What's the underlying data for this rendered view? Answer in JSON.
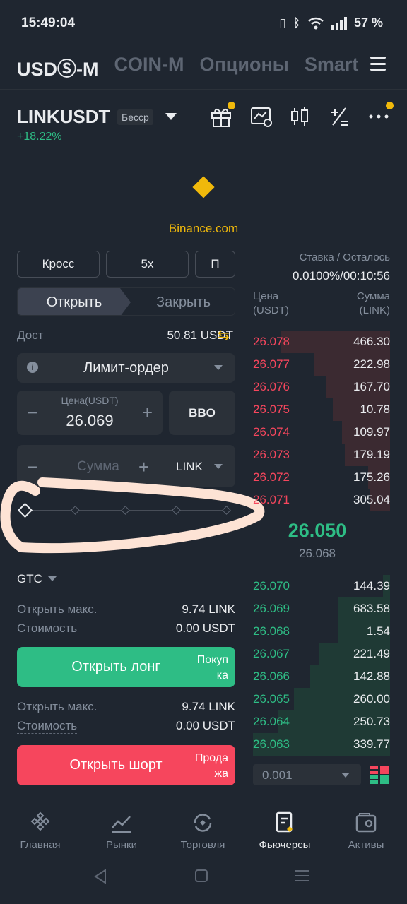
{
  "status_bar": {
    "time": "15:49:04",
    "battery": "57 %"
  },
  "top_tabs": [
    {
      "label": "USDⓈ-M",
      "active": true
    },
    {
      "label": "COIN-M",
      "active": false
    },
    {
      "label": "Опционы",
      "active": false
    },
    {
      "label": "Smart",
      "active": false
    }
  ],
  "symbol": {
    "name": "LINKUSDT",
    "badge": "Бесср",
    "change": "+18.22%"
  },
  "watermark": "Binance.com",
  "margin_mode": "Кросс",
  "leverage": "5x",
  "position_mode": "П",
  "funding": {
    "label": "Ставка / Осталось",
    "value": "0.0100%/00:10:56"
  },
  "side_tabs": {
    "open": "Открыть",
    "close": "Закрыть"
  },
  "available": {
    "label": "Дост",
    "value": "50.81 USDT"
  },
  "order_type": "Лимит-ордер",
  "price_field": {
    "label": "Цена(USDT)",
    "value": "26.069"
  },
  "bbo": "BBO",
  "amount_field": {
    "placeholder": "Сумма",
    "unit": "LINK"
  },
  "tif": "GTC",
  "long": {
    "max_label": "Открыть макс.",
    "max_value": "9.74 LINK",
    "cost_label": "Стоимость",
    "cost_value": "0.00 USDT",
    "button": "Открыть лонг",
    "sub": "Покуп ка"
  },
  "short": {
    "max_label": "Открыть макс.",
    "max_value": "9.74 LINK",
    "cost_label": "Стоимость",
    "cost_value": "0.00 USDT",
    "button": "Открыть шорт",
    "sub": "Прода жа"
  },
  "orderbook": {
    "price_header": "Цена (USDT)",
    "amount_header": "Сумма (LINK)",
    "asks": [
      {
        "price": "26.078",
        "amount": "466.30",
        "depth": 0.8
      },
      {
        "price": "26.077",
        "amount": "222.98",
        "depth": 0.55
      },
      {
        "price": "26.076",
        "amount": "167.70",
        "depth": 0.47
      },
      {
        "price": "26.075",
        "amount": "10.78",
        "depth": 0.42
      },
      {
        "price": "26.074",
        "amount": "109.97",
        "depth": 0.35
      },
      {
        "price": "26.073",
        "amount": "179.19",
        "depth": 0.33
      },
      {
        "price": "26.072",
        "amount": "175.26",
        "depth": 0.16
      },
      {
        "price": "26.071",
        "amount": "305.04",
        "depth": 0.15
      }
    ],
    "last_price": "26.050",
    "mark_price": "26.068",
    "bids": [
      {
        "price": "26.070",
        "amount": "144.39",
        "depth": 0.05
      },
      {
        "price": "26.069",
        "amount": "683.58",
        "depth": 0.38
      },
      {
        "price": "26.068",
        "amount": "1.54",
        "depth": 0.38
      },
      {
        "price": "26.067",
        "amount": "221.49",
        "depth": 0.52
      },
      {
        "price": "26.066",
        "amount": "142.88",
        "depth": 0.58
      },
      {
        "price": "26.065",
        "amount": "260.00",
        "depth": 0.7
      },
      {
        "price": "26.064",
        "amount": "250.73",
        "depth": 0.82
      },
      {
        "price": "26.063",
        "amount": "339.77",
        "depth": 1.0
      }
    ],
    "precision": "0.001"
  },
  "bottom_nav": [
    {
      "label": "Главная",
      "icon": "home-icon",
      "active": false
    },
    {
      "label": "Рынки",
      "icon": "markets-icon",
      "active": false
    },
    {
      "label": "Торговля",
      "icon": "trade-icon",
      "active": false
    },
    {
      "label": "Фьючерсы",
      "icon": "futures-icon",
      "active": true
    },
    {
      "label": "Активы",
      "icon": "wallet-icon",
      "active": false
    }
  ],
  "colors": {
    "background": "#1f2630",
    "accent": "#f0b90b",
    "buy": "#2ebd85",
    "sell": "#f6465d",
    "highlight": "#fde3d5"
  }
}
